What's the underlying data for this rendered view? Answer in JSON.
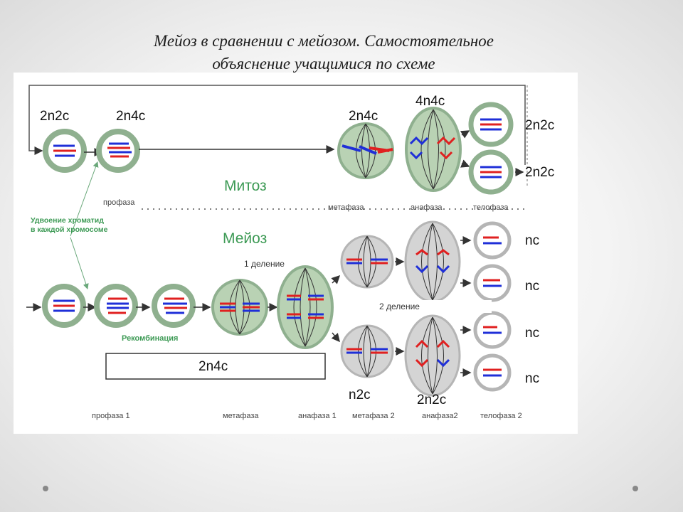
{
  "slide": {
    "title_line1": "Мейоз в сравнении с мейозом. Самостоятельное",
    "title_line2": "объяснение учащимися по схеме"
  },
  "diagram": {
    "mitosis": {
      "title": "Митоз",
      "formulas": [
        "2n2c",
        "2n4c",
        "2n4c",
        "4n4c",
        "2n2c",
        "2n2c"
      ],
      "stages": [
        "профаза",
        "метафаза",
        "анафаза",
        "телофаза"
      ]
    },
    "meiosis": {
      "title": "Мейоз",
      "formulas": [
        "2n4c",
        "n2c",
        "2n2c",
        "nc",
        "nc",
        "nc",
        "nc"
      ],
      "division1": "1 деление",
      "division2": "2 деление",
      "recombination": "Рекомбинация",
      "stages": [
        "профаза 1",
        "метафаза",
        "анафаза 1",
        "метафаза 2",
        "анафаза2",
        "телофаза 2"
      ]
    },
    "note_line1": "Удвоение хроматид",
    "note_line2": "в каждой хромосоме",
    "colors": {
      "cell_border": "#8fb08f",
      "cell_fill_green": "#b9d2b4",
      "cell_fill_gray": "#d4d4d4",
      "chromosome_red": "#e02020",
      "chromosome_blue": "#1f2fd8",
      "label_green": "#3d9a55"
    }
  }
}
